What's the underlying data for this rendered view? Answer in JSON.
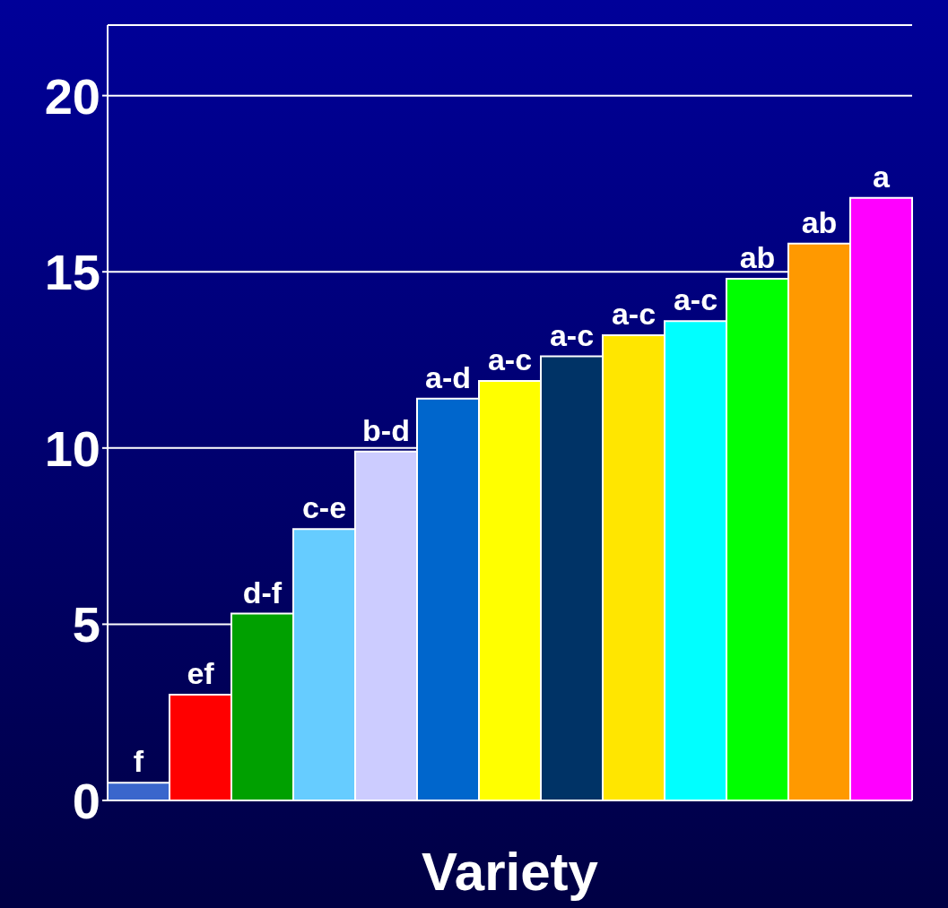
{
  "chart_data": {
    "type": "bar",
    "xlabel": "Variety",
    "categories": [
      null,
      null,
      null,
      null,
      null,
      null,
      null,
      null,
      null,
      null,
      null,
      null,
      null
    ],
    "values": [
      0.5,
      3.0,
      5.3,
      7.7,
      9.9,
      11.4,
      11.9,
      12.6,
      13.2,
      13.6,
      14.8,
      15.8,
      17.1
    ],
    "colors": [
      "#3a66cc",
      "#ff0000",
      "#00a000",
      "#66ccff",
      "#ccccff",
      "#0066cc",
      "#ffff00",
      "#003366",
      "#ffe600",
      "#00ffff",
      "#00ff00",
      "#ff9900",
      "#ff00ff"
    ],
    "value_labels": [
      "f",
      "ef",
      "d-f",
      "c-e",
      "b-d",
      "a-d",
      "a-c",
      "a-c",
      "a-c",
      "a-c",
      "ab",
      "ab",
      "a"
    ],
    "ylim": [
      0,
      22
    ],
    "yticks": [
      0,
      5,
      10,
      15,
      20
    ],
    "grid": "y",
    "tick_labels": "y"
  }
}
